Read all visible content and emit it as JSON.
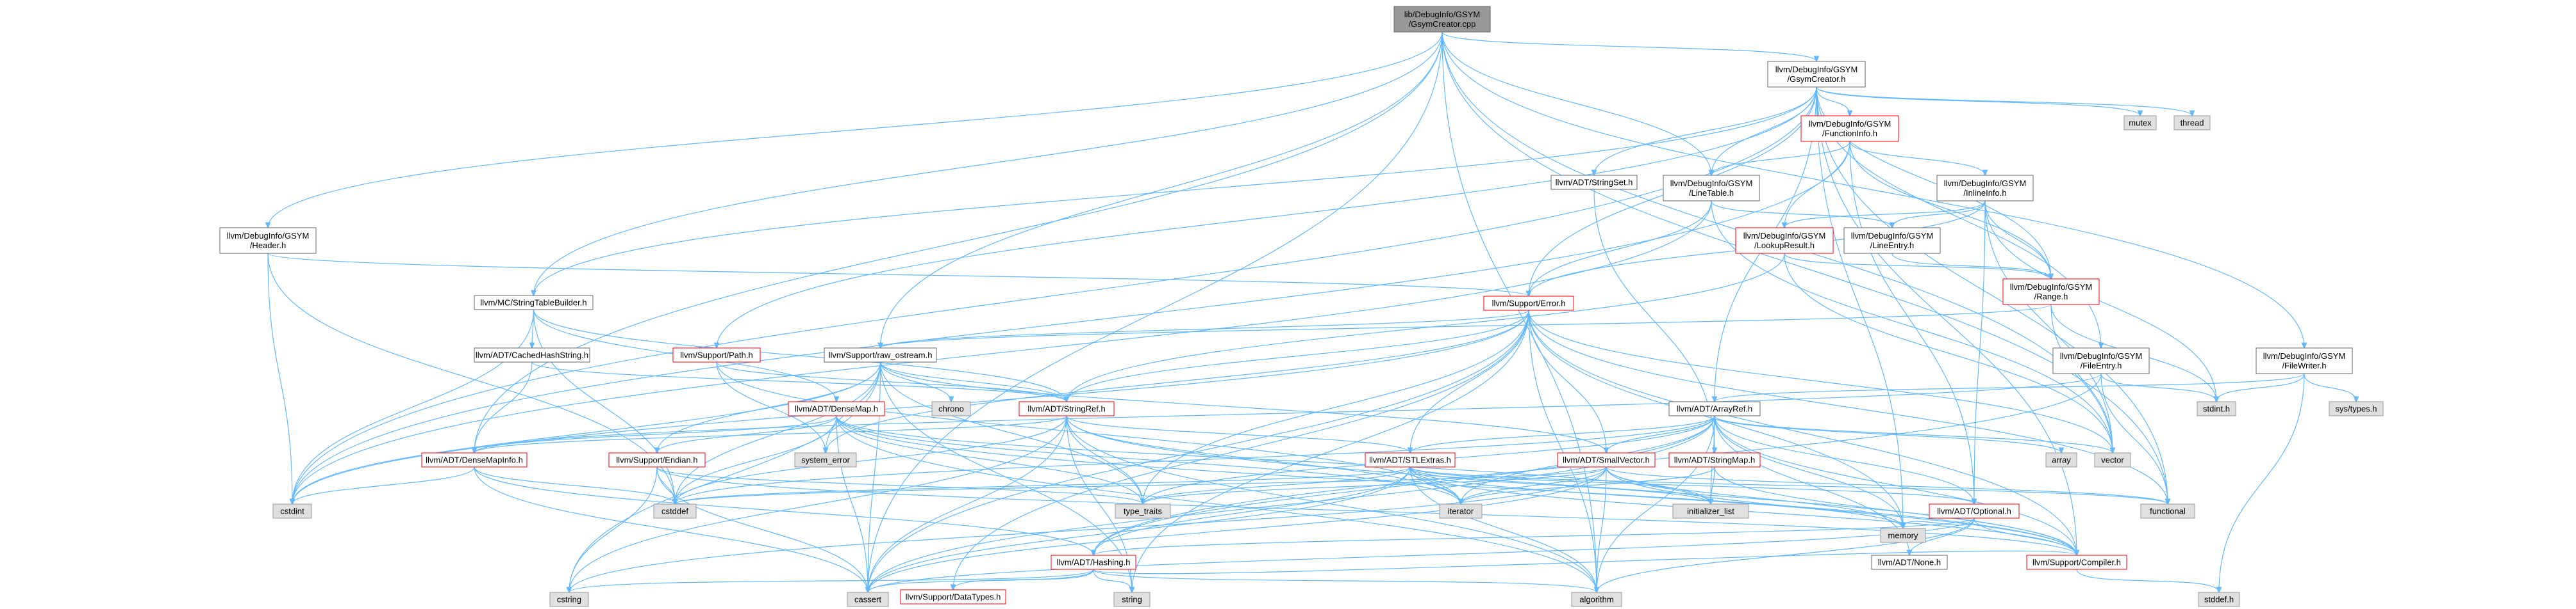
{
  "diagram": {
    "title": "",
    "nodes": {
      "root": [
        "lib/DebugInfo/GSYM",
        "/GsymCreator.cpp"
      ],
      "gsymcreator": [
        "llvm/DebugInfo/GSYM",
        "/GsymCreator.h"
      ],
      "functioninfo": [
        "llvm/DebugInfo/GSYM",
        "/FunctionInfo.h"
      ],
      "inlineinfo": [
        "llvm/DebugInfo/GSYM",
        "/InlineInfo.h"
      ],
      "linetable": [
        "llvm/DebugInfo/GSYM",
        "/LineTable.h"
      ],
      "lookupresult": [
        "llvm/DebugInfo/GSYM",
        "/LookupResult.h"
      ],
      "lineentry": [
        "llvm/DebugInfo/GSYM",
        "/LineEntry.h"
      ],
      "range": [
        "llvm/DebugInfo/GSYM",
        "/Range.h"
      ],
      "header": [
        "llvm/DebugInfo/GSYM",
        "/Header.h"
      ],
      "fileentry": [
        "llvm/DebugInfo/GSYM",
        "/FileEntry.h"
      ],
      "filewriter": [
        "llvm/DebugInfo/GSYM",
        "/FileWriter.h"
      ],
      "stringtablebuilder": [
        "llvm/MC/StringTableBuilder.h"
      ],
      "cachedhashstring": [
        "llvm/ADT/CachedHashString.h"
      ],
      "stringset": [
        "llvm/ADT/StringSet.h"
      ],
      "error": [
        "llvm/Support/Error.h"
      ],
      "path": [
        "llvm/Support/Path.h"
      ],
      "raw_ostream": [
        "llvm/Support/raw_ostream.h"
      ],
      "densemap": [
        "llvm/ADT/DenseMap.h"
      ],
      "densemapinfo": [
        "llvm/ADT/DenseMapInfo.h"
      ],
      "endian": [
        "llvm/Support/Endian.h"
      ],
      "stringref": [
        "llvm/ADT/StringRef.h"
      ],
      "stlextras": [
        "llvm/ADT/STLExtras.h"
      ],
      "smallvector": [
        "llvm/ADT/SmallVector.h"
      ],
      "stringmap": [
        "llvm/ADT/StringMap.h"
      ],
      "arrayref": [
        "llvm/ADT/ArrayRef.h"
      ],
      "optional": [
        "llvm/ADT/Optional.h"
      ],
      "hashing": [
        "llvm/ADT/Hashing.h"
      ],
      "none": [
        "llvm/ADT/None.h"
      ],
      "compiler": [
        "llvm/Support/Compiler.h"
      ],
      "datatypes": [
        "llvm/Support/DataTypes.h"
      ],
      "mutex": [
        "mutex"
      ],
      "thread": [
        "thread"
      ],
      "system_error": [
        "system_error"
      ],
      "chrono": [
        "chrono"
      ],
      "stdint": [
        "stdint.h"
      ],
      "systypes": [
        "sys/types.h"
      ],
      "array": [
        "array"
      ],
      "vector": [
        "vector"
      ],
      "functional": [
        "functional"
      ],
      "cstdint": [
        "cstdint"
      ],
      "cstddef": [
        "cstddef"
      ],
      "type_traits": [
        "type_traits"
      ],
      "iterator": [
        "iterator"
      ],
      "initializer_list": [
        "initializer_list"
      ],
      "memory": [
        "memory"
      ],
      "cstring": [
        "cstring"
      ],
      "cassert": [
        "cassert"
      ],
      "string": [
        "string"
      ],
      "algorithm": [
        "algorithm"
      ],
      "stddef": [
        "stddef.h"
      ]
    }
  },
  "colors": {
    "edge": "#63b8ff",
    "root_fill": "#999999",
    "std_fill": "#e0e0e0",
    "truncated_border": "#ff0000",
    "border": "#666666"
  }
}
